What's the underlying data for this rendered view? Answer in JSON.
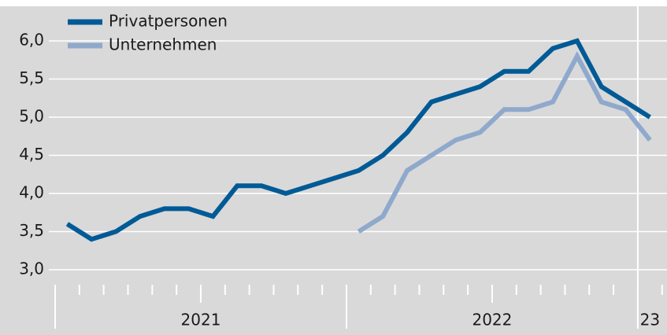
{
  "chart_data": {
    "type": "line",
    "categories": [
      null,
      null,
      null,
      null,
      null,
      null,
      null,
      null,
      null,
      null,
      null,
      null,
      null,
      null,
      null,
      null,
      null,
      null,
      null,
      null,
      null,
      null,
      null,
      null,
      null
    ],
    "x_groups": [
      "2021",
      "2022",
      "23"
    ],
    "series": [
      {
        "name": "Privatpersonen",
        "color": "#005a96",
        "values": [
          3.6,
          3.4,
          3.5,
          3.7,
          3.8,
          3.8,
          3.7,
          4.1,
          4.1,
          4.0,
          4.1,
          4.2,
          4.3,
          4.5,
          4.8,
          5.2,
          5.3,
          5.4,
          5.6,
          5.6,
          5.9,
          6.0,
          5.4,
          5.2,
          5.0
        ]
      },
      {
        "name": "Unternehmen",
        "color": "#8fa9cc",
        "values": [
          null,
          null,
          null,
          null,
          null,
          null,
          null,
          null,
          null,
          null,
          null,
          null,
          3.5,
          3.7,
          4.3,
          4.5,
          4.7,
          4.8,
          5.1,
          5.1,
          5.2,
          5.8,
          5.2,
          5.1,
          4.7
        ]
      }
    ],
    "ylim": [
      3.0,
      6.0
    ],
    "yticks": [
      {
        "value": 3.0,
        "label": "3,0"
      },
      {
        "value": 3.5,
        "label": "3,5"
      },
      {
        "value": 4.0,
        "label": "4,0"
      },
      {
        "value": 4.5,
        "label": "4,5"
      },
      {
        "value": 5.0,
        "label": "5,0"
      },
      {
        "value": 5.5,
        "label": "5,5"
      },
      {
        "value": 6.0,
        "label": "6,0"
      }
    ],
    "grid": true
  }
}
